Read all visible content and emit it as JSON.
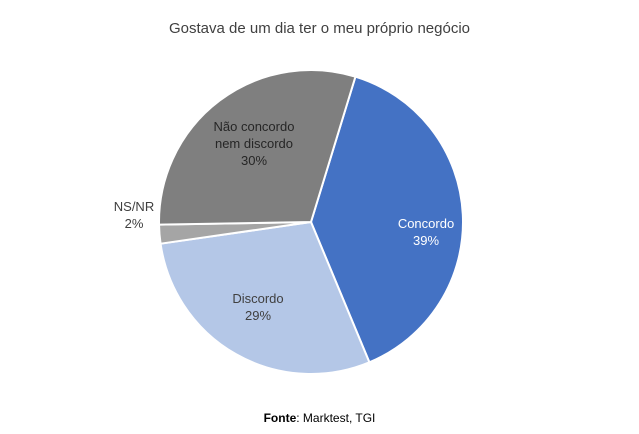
{
  "chart_data": {
    "type": "pie",
    "title": "Gostava de um dia ter o meu próprio negócio",
    "slices": [
      {
        "label": "Concordo",
        "value": 39,
        "value_label": "39%",
        "color": "#4472C4"
      },
      {
        "label": "Discordo",
        "value": 29,
        "value_label": "29%",
        "color": "#B4C7E7"
      },
      {
        "label": "NS/NR",
        "value": 2,
        "value_label": "2%",
        "color": "#A5A5A5"
      },
      {
        "label": "Não concordo nem discordo",
        "value": 30,
        "value_label": "30%",
        "color": "#7F7F7F"
      }
    ],
    "start": "top-right",
    "direction": "clockwise",
    "legend": "none",
    "source_label": "Fonte",
    "source_text": ": Marktest, TGI"
  }
}
